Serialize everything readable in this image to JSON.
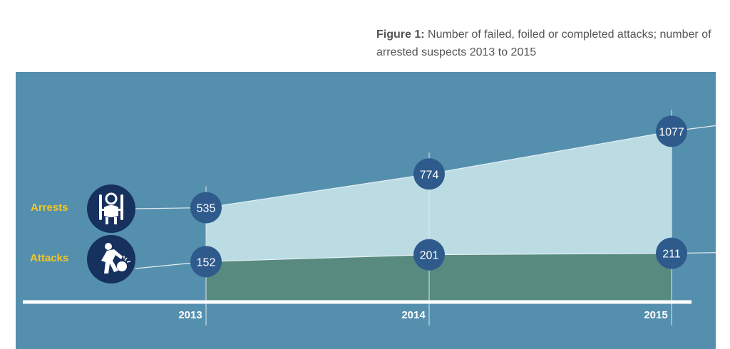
{
  "caption": {
    "label": "Figure 1:",
    "text": "Number of failed, foiled or completed attacks; number of arrested suspects 2013 to 2015"
  },
  "colors": {
    "background": "#558fae",
    "arrests_fill": "#bcdce4",
    "attacks_fill": "#588a80",
    "marker": "#2f5a8c",
    "label_yellow": "#f2c625",
    "icon_bg": "#16315e"
  },
  "series_labels": {
    "arrests": "Arrests",
    "attacks": "Attacks"
  },
  "icons": {
    "arrests": "handcuffed-person-icon",
    "attacks": "person-throwing-bomb-icon"
  },
  "chart_data": {
    "type": "area",
    "categories": [
      "2013",
      "2014",
      "2015"
    ],
    "series": [
      {
        "name": "Arrests",
        "values": [
          535,
          774,
          1077
        ]
      },
      {
        "name": "Attacks",
        "values": [
          152,
          201,
          211
        ]
      }
    ],
    "grid": false,
    "legend": "left"
  }
}
